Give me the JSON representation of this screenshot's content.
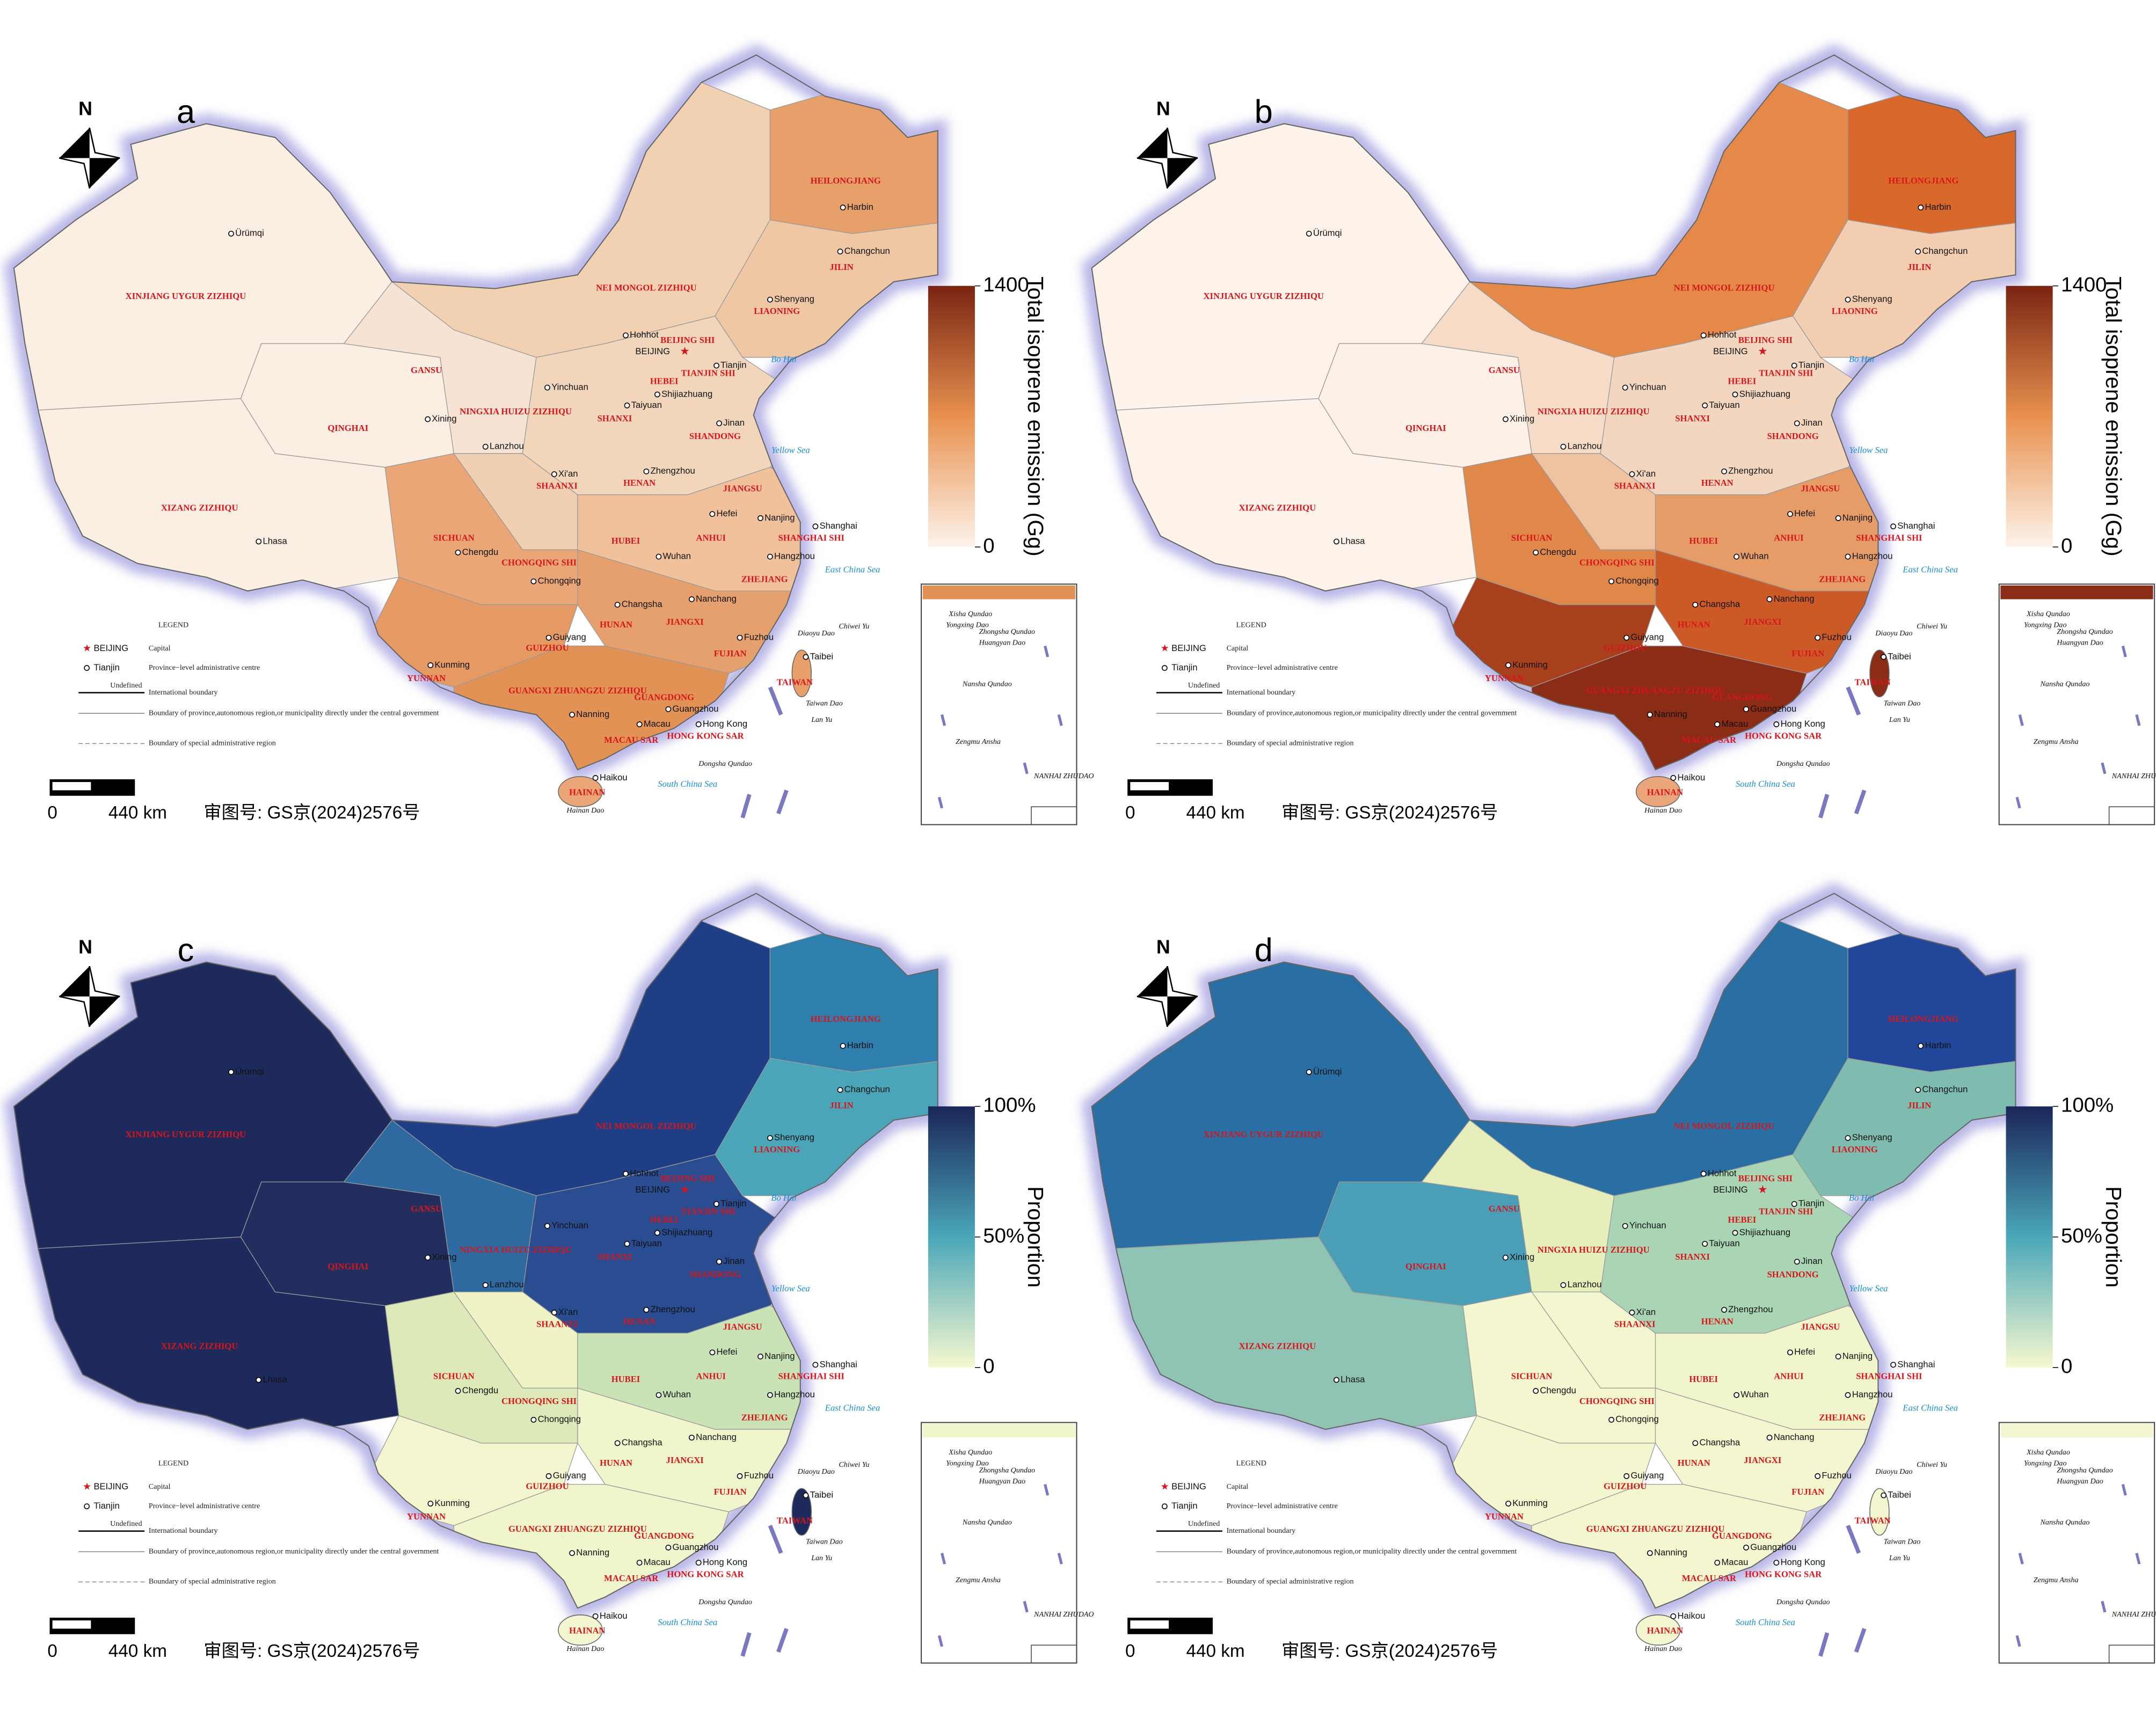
{
  "panels": [
    {
      "letter": "a"
    },
    {
      "letter": "b"
    },
    {
      "letter": "c"
    },
    {
      "letter": "d"
    }
  ],
  "north": "N",
  "colorbars": [
    {
      "title": "Total isoprene emission (Gg)",
      "lim": [
        0,
        1400
      ],
      "ticks": [
        0,
        1400
      ]
    },
    {
      "title": "Proportion",
      "lim": [
        0,
        100
      ],
      "ticks": [
        0,
        {
          "value": 50,
          "label": "50%"
        },
        {
          "value": 100,
          "label": "100%"
        }
      ]
    }
  ],
  "provinces": [
    "XINJIANG  UYGUR  ZIZHIQU",
    "QINGHAI",
    "XIZANG   ZIZHIQU",
    "GANSU",
    "NINGXIA HUIZU ZIZHIQU",
    "NEI   MONGOL   ZIZHIQU",
    "HEILONGJIANG",
    "JILIN",
    "LIAONING",
    "BEIJING SHI",
    "TIANJIN SHI",
    "HEBEI",
    "SHANXI",
    "SHANDONG",
    "SHAANXI",
    "HENAN",
    "JIANGSU",
    "ANHUI",
    "SHANGHAI SHI",
    "HUBEI",
    "SICHUAN",
    "CHONGQING SHI",
    "ZHEJIANG",
    "HUNAN",
    "JIANGXI",
    "FUJIAN",
    "GUIZHOU",
    "YUNNAN",
    "GUANGXI ZHUANGZU ZIZHIQU",
    "GUANGDONG",
    "TAIWAN",
    "HONG KONG SAR",
    "MACAU SAR",
    "HAINAN"
  ],
  "cities": [
    "Ürümqi",
    "Lhasa",
    "Xining",
    "Lanzhou",
    "Yinchuan",
    "Hohhot",
    "Harbin",
    "Changchun",
    "Shenyang",
    "BEIJING",
    "Tianjin",
    "Shijiazhuang",
    "Taiyuan",
    "Jinan",
    "Zhengzhou",
    "Xi'an",
    "Hefei",
    "Nanjing",
    "Shanghai",
    "Hangzhou",
    "Wuhan",
    "Chengdu",
    "Chongqing",
    "Changsha",
    "Nanchang",
    "Fuzhou",
    "Guiyang",
    "Kunming",
    "Nanning",
    "Guangzhou",
    "Hong Kong",
    "Macau",
    "Taibei",
    "Haikou"
  ],
  "seas": [
    "Bo Hai",
    "Yellow  Sea",
    "East  China  Sea",
    "South  China  Sea"
  ],
  "islands": [
    "Diaoyu Dao",
    "Chiwei Yu",
    "Taiwan Dao",
    "Lan Yu",
    "Dongsha Qundao",
    "Hainan Dao"
  ],
  "inset": [
    "Xisha Qundao",
    "Yongxing Dao",
    "Zhongsha Qundao",
    "Huangyan Dao",
    "Nansha Qundao",
    "Zengmu Ansha",
    "NANHAI ZHUDAO"
  ],
  "legend": {
    "title": "LEGEND",
    "capital_name": "BEIJING",
    "capital": "Capital",
    "centre_name": "Tianjin",
    "centre": "Province−level administrative centre",
    "undefined": "Undefined",
    "international": "International boundary",
    "province_boundary": "Boundary of province,autonomous region,or municipality directly under the central government",
    "sar_boundary": "Boundary of special administrative region"
  },
  "scale": {
    "zero": "0",
    "distance": "440 km"
  },
  "approval": "审图号: GS京(2024)2576号"
}
